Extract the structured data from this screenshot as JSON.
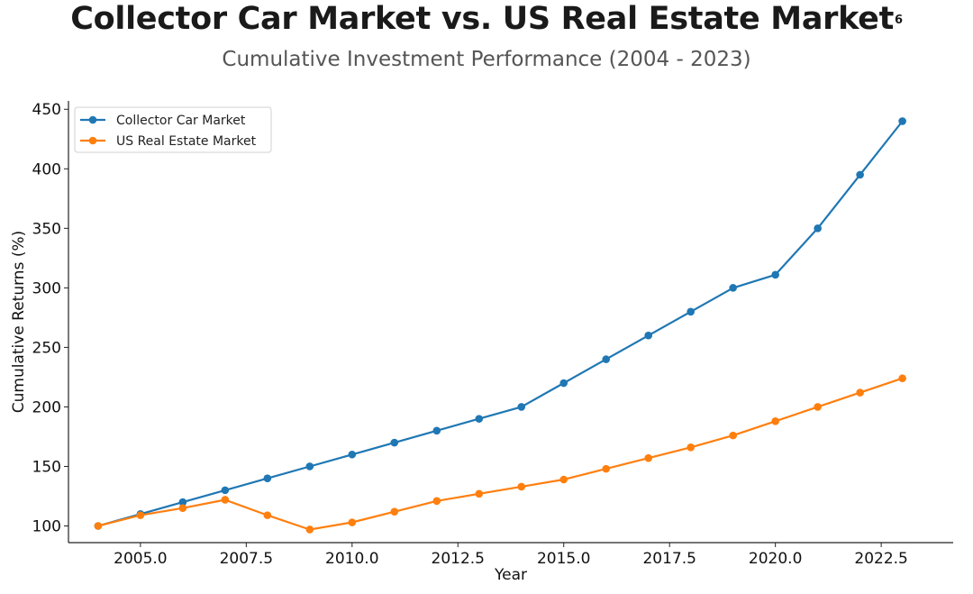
{
  "title": "Collector Car Market vs. US Real Estate Market",
  "title_footnote": "6",
  "subtitle": "Cumulative Investment Performance (2004 - 2023)",
  "chart_data": {
    "type": "line",
    "xlabel": "Year",
    "ylabel": "Cumulative Returns (%)",
    "xlim": [
      2003.3,
      2024.2
    ],
    "ylim": [
      86,
      457
    ],
    "x_ticks": [
      2005.0,
      2007.5,
      2010.0,
      2012.5,
      2015.0,
      2017.5,
      2020.0,
      2022.5
    ],
    "x_tick_labels": [
      "2005.0",
      "2007.5",
      "2010.0",
      "2012.5",
      "2015.0",
      "2017.5",
      "2020.0",
      "2022.5"
    ],
    "y_ticks": [
      100,
      150,
      200,
      250,
      300,
      350,
      400,
      450
    ],
    "y_tick_labels": [
      "100",
      "150",
      "200",
      "250",
      "300",
      "350",
      "400",
      "450"
    ],
    "grid": false,
    "legend_position": "top-left",
    "x": [
      2004,
      2005,
      2006,
      2007,
      2008,
      2009,
      2010,
      2011,
      2012,
      2013,
      2014,
      2015,
      2016,
      2017,
      2018,
      2019,
      2020,
      2021,
      2022,
      2023
    ],
    "series": [
      {
        "name": "Collector Car Market",
        "color": "#1f77b4",
        "values": [
          100,
          110,
          120,
          130,
          140,
          150,
          160,
          170,
          180,
          190,
          200,
          220,
          240,
          260,
          280,
          300,
          311,
          350,
          395,
          440
        ]
      },
      {
        "name": "US Real Estate Market",
        "color": "#ff7f0e",
        "values": [
          100,
          109,
          115,
          122,
          109,
          97,
          103,
          112,
          121,
          127,
          133,
          139,
          148,
          157,
          166,
          176,
          188,
          200,
          212,
          224
        ]
      }
    ]
  }
}
